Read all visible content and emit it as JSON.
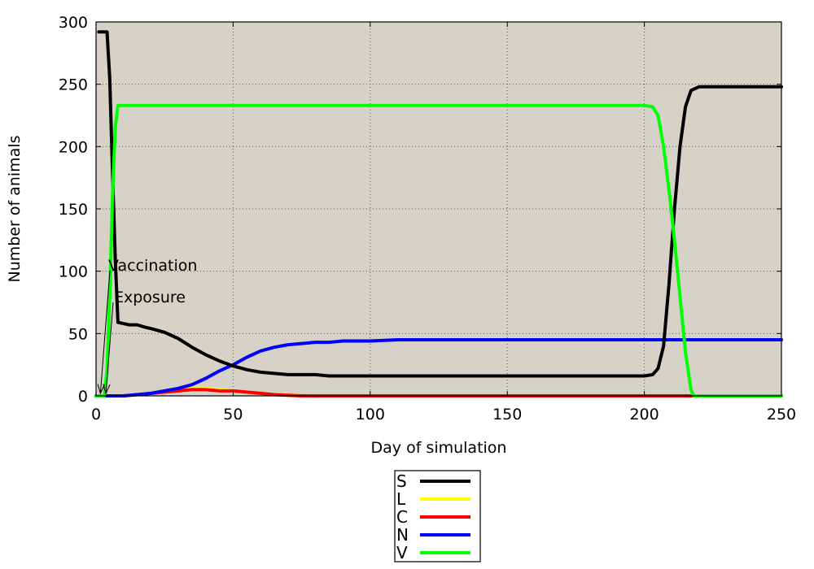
{
  "chart_data": {
    "type": "line",
    "title": "",
    "xlabel": "Day of simulation",
    "ylabel": "Number of animals",
    "xlim": [
      0,
      250
    ],
    "ylim": [
      0,
      300
    ],
    "xticks": [
      0,
      50,
      100,
      150,
      200,
      250
    ],
    "yticks": [
      0,
      50,
      100,
      150,
      200,
      250,
      300
    ],
    "grid": true,
    "plot_background": "#d6d2c8",
    "legend_position": "bottom-center",
    "annotations": [
      {
        "text": "Vaccination",
        "x": 1,
        "y": 0
      },
      {
        "text": "Exposure",
        "x": 3,
        "y": 0
      }
    ],
    "series": [
      {
        "name": "S",
        "color": "#000000",
        "points": [
          [
            1,
            292
          ],
          [
            4,
            292
          ],
          [
            5,
            255
          ],
          [
            6,
            180
          ],
          [
            7,
            110
          ],
          [
            8,
            59
          ],
          [
            10,
            58
          ],
          [
            12,
            57
          ],
          [
            15,
            57
          ],
          [
            18,
            55
          ],
          [
            20,
            54
          ],
          [
            25,
            51
          ],
          [
            30,
            46
          ],
          [
            35,
            39
          ],
          [
            40,
            33
          ],
          [
            45,
            28
          ],
          [
            50,
            24
          ],
          [
            55,
            21
          ],
          [
            60,
            19
          ],
          [
            65,
            18
          ],
          [
            70,
            17
          ],
          [
            80,
            17
          ],
          [
            85,
            16
          ],
          [
            100,
            16
          ],
          [
            150,
            16
          ],
          [
            200,
            16
          ],
          [
            203,
            17
          ],
          [
            205,
            22
          ],
          [
            207,
            40
          ],
          [
            209,
            90
          ],
          [
            211,
            150
          ],
          [
            213,
            200
          ],
          [
            215,
            232
          ],
          [
            217,
            245
          ],
          [
            220,
            248
          ],
          [
            250,
            248
          ]
        ]
      },
      {
        "name": "L",
        "color": "#ffff00",
        "points": [
          [
            0,
            0
          ],
          [
            10,
            0
          ],
          [
            15,
            1
          ],
          [
            20,
            2
          ],
          [
            25,
            3
          ],
          [
            30,
            5
          ],
          [
            35,
            6
          ],
          [
            40,
            6
          ],
          [
            45,
            5
          ],
          [
            50,
            4
          ],
          [
            55,
            3
          ],
          [
            60,
            2
          ],
          [
            65,
            1
          ],
          [
            70,
            0.5
          ],
          [
            75,
            0
          ],
          [
            250,
            0
          ]
        ]
      },
      {
        "name": "C",
        "color": "#ff0000",
        "points": [
          [
            0,
            0
          ],
          [
            10,
            0
          ],
          [
            15,
            1
          ],
          [
            20,
            2
          ],
          [
            25,
            3
          ],
          [
            30,
            4
          ],
          [
            35,
            5
          ],
          [
            40,
            5
          ],
          [
            45,
            4
          ],
          [
            50,
            4
          ],
          [
            55,
            3
          ],
          [
            60,
            2
          ],
          [
            65,
            1
          ],
          [
            70,
            0.5
          ],
          [
            75,
            0
          ],
          [
            250,
            0
          ]
        ]
      },
      {
        "name": "N",
        "color": "#0000ff",
        "points": [
          [
            0,
            0
          ],
          [
            10,
            0
          ],
          [
            15,
            1
          ],
          [
            20,
            2
          ],
          [
            25,
            4
          ],
          [
            30,
            6
          ],
          [
            35,
            9
          ],
          [
            40,
            14
          ],
          [
            45,
            20
          ],
          [
            50,
            25
          ],
          [
            55,
            31
          ],
          [
            60,
            36
          ],
          [
            65,
            39
          ],
          [
            70,
            41
          ],
          [
            75,
            42
          ],
          [
            80,
            43
          ],
          [
            85,
            43
          ],
          [
            90,
            44
          ],
          [
            100,
            44
          ],
          [
            110,
            45
          ],
          [
            150,
            45
          ],
          [
            200,
            45
          ],
          [
            250,
            45
          ]
        ]
      },
      {
        "name": "V",
        "color": "#00ff00",
        "points": [
          [
            0,
            0
          ],
          [
            3,
            0
          ],
          [
            4,
            20
          ],
          [
            5,
            80
          ],
          [
            6,
            160
          ],
          [
            7,
            215
          ],
          [
            8,
            233
          ],
          [
            10,
            233
          ],
          [
            100,
            233
          ],
          [
            150,
            233
          ],
          [
            200,
            233
          ],
          [
            203,
            232
          ],
          [
            205,
            225
          ],
          [
            207,
            200
          ],
          [
            209,
            165
          ],
          [
            211,
            125
          ],
          [
            213,
            80
          ],
          [
            215,
            35
          ],
          [
            217,
            5
          ],
          [
            218,
            0
          ],
          [
            250,
            0
          ]
        ]
      }
    ]
  }
}
